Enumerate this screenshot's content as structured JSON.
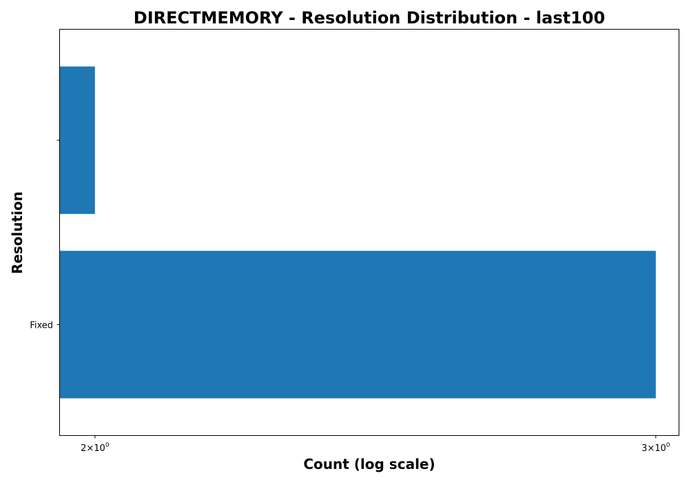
{
  "chart_data": {
    "type": "bar",
    "orientation": "horizontal",
    "title": "DIRECTMEMORY - Resolution Distribution - last100",
    "xlabel": "Count (log scale)",
    "ylabel": "Resolution",
    "x_scale": "log",
    "xlim": [
      1.95,
      3.05
    ],
    "grid": false,
    "categories": [
      "Fixed",
      ""
    ],
    "values": [
      3,
      2
    ],
    "x_ticks": [
      {
        "value": 2,
        "label": "2×10",
        "exp": "0"
      },
      {
        "value": 3,
        "label": "3×10",
        "exp": "0"
      }
    ],
    "bar_color": "#1f77b4"
  }
}
